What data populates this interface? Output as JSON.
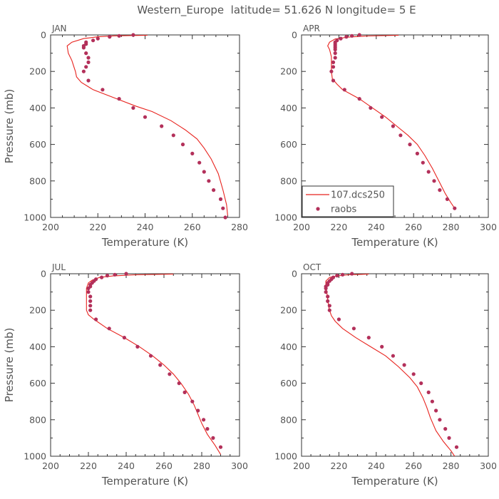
{
  "figure_title": "Western_Europe  latitude= 51.626 N longitude= 5 E",
  "colors": {
    "model": "#e8231e",
    "obs": "#b3305a",
    "axis": "#333333",
    "text": "#555555"
  },
  "legend": {
    "model_label": "107.dcs250",
    "obs_label": "raobs",
    "panel": 1,
    "placement": "bottom-left"
  },
  "chart_data": [
    {
      "type": "line",
      "name": "JAN",
      "xlabel": "Temperature (K)",
      "ylabel": "Pressure (mb)",
      "xlim": [
        200,
        280
      ],
      "ylim": [
        1000,
        0
      ],
      "xticks": [
        200,
        220,
        240,
        260,
        280
      ],
      "yticks": [
        0,
        200,
        400,
        600,
        800,
        1000
      ],
      "grid": false,
      "series": [
        {
          "kind": "line",
          "points": [
            [
              241,
              2
            ],
            [
              227,
              5
            ],
            [
              220,
              10
            ],
            [
              214,
              20
            ],
            [
              209,
              40
            ],
            [
              207,
              60
            ],
            [
              207.5,
              100
            ],
            [
              209,
              140
            ],
            [
              210,
              180
            ],
            [
              210.5,
              200
            ],
            [
              211,
              230
            ],
            [
              213,
              260
            ],
            [
              218,
              300
            ],
            [
              228,
              350
            ],
            [
              236,
              390
            ],
            [
              243,
              420
            ],
            [
              251,
              470
            ],
            [
              257,
              520
            ],
            [
              262,
              570
            ],
            [
              265,
              620
            ],
            [
              268,
              680
            ],
            [
              271,
              760
            ],
            [
              273,
              850
            ],
            [
              274.5,
              930
            ],
            [
              275,
              990
            ]
          ]
        },
        {
          "kind": "scatter",
          "points": [
            [
              235,
              0
            ],
            [
              229,
              5
            ],
            [
              225,
              10
            ],
            [
              220,
              20
            ],
            [
              218,
              30
            ],
            [
              215,
              40
            ],
            [
              215,
              50
            ],
            [
              214,
              60
            ],
            [
              214,
              70
            ],
            [
              215,
              100
            ],
            [
              216,
              125
            ],
            [
              216,
              150
            ],
            [
              215,
              175
            ],
            [
              214,
              200
            ],
            [
              216,
              250
            ],
            [
              222,
              300
            ],
            [
              229,
              350
            ],
            [
              235,
              400
            ],
            [
              240,
              450
            ],
            [
              247,
              500
            ],
            [
              252,
              550
            ],
            [
              256,
              600
            ],
            [
              260,
              650
            ],
            [
              263,
              700
            ],
            [
              265,
              750
            ],
            [
              267,
              800
            ],
            [
              269,
              850
            ],
            [
              272,
              900
            ],
            [
              273,
              950
            ],
            [
              274,
              1000
            ]
          ]
        }
      ]
    },
    {
      "type": "line",
      "name": "APR",
      "xlabel": "Temperature (K)",
      "ylabel": "",
      "xlim": [
        200,
        300
      ],
      "ylim": [
        1000,
        0
      ],
      "xticks": [
        200,
        220,
        240,
        260,
        280,
        300
      ],
      "yticks": [
        0,
        200,
        400,
        600,
        800,
        1000
      ],
      "grid": false,
      "series": [
        {
          "kind": "line",
          "points": [
            [
              252,
              2
            ],
            [
              235,
              6
            ],
            [
              225,
              12
            ],
            [
              218,
              22
            ],
            [
              215,
              40
            ],
            [
              214,
              60
            ],
            [
              215,
              80
            ],
            [
              216,
              120
            ],
            [
              216,
              160
            ],
            [
              216,
              200
            ],
            [
              216.5,
              240
            ],
            [
              219,
              270
            ],
            [
              222,
              300
            ],
            [
              231,
              350
            ],
            [
              238,
              400
            ],
            [
              245,
              450
            ],
            [
              251,
              500
            ],
            [
              257,
              550
            ],
            [
              262,
              600
            ],
            [
              266,
              660
            ],
            [
              270,
              730
            ],
            [
              274,
              810
            ],
            [
              277,
              870
            ],
            [
              280,
              920
            ],
            [
              282,
              950
            ]
          ]
        },
        {
          "kind": "scatter",
          "points": [
            [
              231,
              0
            ],
            [
              227,
              5
            ],
            [
              224,
              10
            ],
            [
              221,
              20
            ],
            [
              219,
              30
            ],
            [
              218,
              40
            ],
            [
              218,
              50
            ],
            [
              218,
              60
            ],
            [
              218,
              70
            ],
            [
              218,
              80
            ],
            [
              218,
              100
            ],
            [
              218,
              125
            ],
            [
              217,
              150
            ],
            [
              217,
              175
            ],
            [
              216,
              200
            ],
            [
              217,
              250
            ],
            [
              223,
              300
            ],
            [
              231,
              350
            ],
            [
              237,
              400
            ],
            [
              243,
              450
            ],
            [
              249,
              500
            ],
            [
              253,
              550
            ],
            [
              258,
              600
            ],
            [
              262,
              650
            ],
            [
              265,
              700
            ],
            [
              268,
              750
            ],
            [
              271,
              800
            ],
            [
              274,
              850
            ],
            [
              278,
              900
            ],
            [
              282,
              950
            ]
          ]
        }
      ]
    },
    {
      "type": "line",
      "name": "JUL",
      "xlabel": "Temperature (K)",
      "ylabel": "Pressure (mb)",
      "xlim": [
        200,
        300
      ],
      "ylim": [
        1000,
        0
      ],
      "xticks": [
        200,
        220,
        240,
        260,
        280,
        300
      ],
      "yticks": [
        0,
        200,
        400,
        600,
        800,
        1000
      ],
      "grid": false,
      "series": [
        {
          "kind": "line",
          "points": [
            [
              265,
              2
            ],
            [
              245,
              6
            ],
            [
              233,
              12
            ],
            [
              226,
              20
            ],
            [
              222,
              35
            ],
            [
              220,
              50
            ],
            [
              219,
              80
            ],
            [
              219,
              120
            ],
            [
              219,
              160
            ],
            [
              219,
              200
            ],
            [
              220,
              225
            ],
            [
              223,
              250
            ],
            [
              230,
              300
            ],
            [
              239,
              350
            ],
            [
              247,
              400
            ],
            [
              254,
              450
            ],
            [
              260,
              500
            ],
            [
              265,
              550
            ],
            [
              269,
              600
            ],
            [
              273,
              660
            ],
            [
              276,
              720
            ],
            [
              278,
              770
            ],
            [
              280,
              820
            ],
            [
              283,
              880
            ],
            [
              287,
              940
            ],
            [
              290,
              990
            ]
          ]
        },
        {
          "kind": "scatter",
          "points": [
            [
              240,
              0
            ],
            [
              234,
              5
            ],
            [
              230,
              10
            ],
            [
              227,
              20
            ],
            [
              224,
              30
            ],
            [
              223,
              40
            ],
            [
              222,
              50
            ],
            [
              221,
              60
            ],
            [
              221,
              70
            ],
            [
              220,
              80
            ],
            [
              220,
              100
            ],
            [
              221,
              125
            ],
            [
              221,
              150
            ],
            [
              221,
              175
            ],
            [
              221,
              200
            ],
            [
              224,
              250
            ],
            [
              231,
              300
            ],
            [
              239,
              350
            ],
            [
              246,
              400
            ],
            [
              253,
              450
            ],
            [
              258,
              500
            ],
            [
              263,
              550
            ],
            [
              268,
              600
            ],
            [
              271,
              650
            ],
            [
              275,
              700
            ],
            [
              278,
              750
            ],
            [
              281,
              800
            ],
            [
              283,
              850
            ],
            [
              286,
              900
            ],
            [
              290,
              950
            ]
          ]
        }
      ]
    },
    {
      "type": "line",
      "name": "OCT",
      "xlabel": "Temperature (K)",
      "ylabel": "",
      "xlim": [
        200,
        300
      ],
      "ylim": [
        1000,
        0
      ],
      "xticks": [
        200,
        220,
        240,
        260,
        280,
        300
      ],
      "yticks": [
        0,
        200,
        400,
        600,
        800,
        1000
      ],
      "grid": false,
      "series": [
        {
          "kind": "line",
          "points": [
            [
              236,
              2
            ],
            [
              225,
              6
            ],
            [
              219,
              12
            ],
            [
              215,
              20
            ],
            [
              213,
              40
            ],
            [
              213,
              60
            ],
            [
              213.5,
              100
            ],
            [
              214,
              140
            ],
            [
              214.5,
              180
            ],
            [
              215,
              200
            ],
            [
              216,
              230
            ],
            [
              218,
              260
            ],
            [
              222,
              300
            ],
            [
              229,
              350
            ],
            [
              237,
              400
            ],
            [
              245,
              450
            ],
            [
              252,
              510
            ],
            [
              258,
              570
            ],
            [
              262,
              620
            ],
            [
              265,
              680
            ],
            [
              267,
              730
            ],
            [
              269,
              790
            ],
            [
              272,
              860
            ],
            [
              276,
              920
            ],
            [
              280,
              970
            ],
            [
              282,
              1000
            ]
          ]
        },
        {
          "kind": "scatter",
          "points": [
            [
              227,
              0
            ],
            [
              222,
              5
            ],
            [
              219,
              10
            ],
            [
              217,
              20
            ],
            [
              216,
              30
            ],
            [
              215,
              40
            ],
            [
              214,
              50
            ],
            [
              214,
              60
            ],
            [
              213,
              70
            ],
            [
              213,
              80
            ],
            [
              213,
              100
            ],
            [
              214,
              125
            ],
            [
              214,
              150
            ],
            [
              215,
              175
            ],
            [
              215,
              200
            ],
            [
              220,
              250
            ],
            [
              228,
              300
            ],
            [
              236,
              350
            ],
            [
              243,
              400
            ],
            [
              249,
              450
            ],
            [
              255,
              500
            ],
            [
              260,
              550
            ],
            [
              264,
              600
            ],
            [
              268,
              650
            ],
            [
              270,
              700
            ],
            [
              272,
              750
            ],
            [
              274,
              800
            ],
            [
              277,
              850
            ],
            [
              279,
              900
            ],
            [
              283,
              950
            ]
          ]
        }
      ]
    }
  ]
}
